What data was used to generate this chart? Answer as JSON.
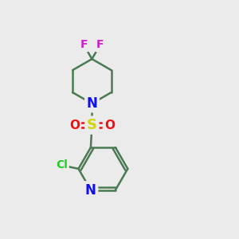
{
  "background_color": "#ebebeb",
  "bond_color": "#4a7a52",
  "bond_width": 1.8,
  "atom_colors": {
    "N_py": "#1010ee",
    "N_pip": "#1010ee",
    "S": "#d4d400",
    "O": "#ee1010",
    "Cl": "#22cc22",
    "F": "#cc22cc"
  },
  "figsize": [
    3.0,
    3.0
  ],
  "dpi": 100,
  "xlim": [
    0,
    10
  ],
  "ylim": [
    0,
    10
  ]
}
